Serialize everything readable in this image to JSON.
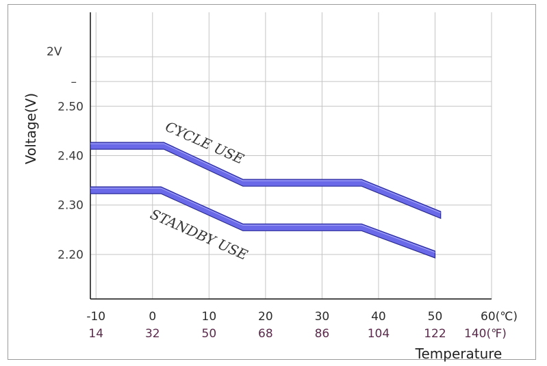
{
  "chart_data": {
    "type": "line",
    "ylabel": "Voltage(V)",
    "xlabel": "Temperature",
    "y_ticks": [
      {
        "value": 2.6,
        "label": "2V"
      },
      {
        "value": 2.55,
        "label": "–"
      },
      {
        "value": 2.5,
        "label": "2.50"
      },
      {
        "value": 2.4,
        "label": "2.40"
      },
      {
        "value": 2.3,
        "label": "2.30"
      },
      {
        "value": 2.2,
        "label": "2.20"
      }
    ],
    "ylim": [
      2.11,
      2.69
    ],
    "x_celsius_labels": [
      "-10",
      "0",
      "10",
      "20",
      "30",
      "40",
      "50",
      "60(℃)"
    ],
    "x_fahrenheit_labels": [
      "14",
      "32",
      "50",
      "68",
      "86",
      "104",
      "122",
      "140(℉)"
    ],
    "x_celsius_values": [
      -10,
      0,
      10,
      20,
      30,
      40,
      50,
      60
    ],
    "xlim": [
      -11,
      60
    ],
    "grid": true,
    "series": [
      {
        "name": "CYCLE USE",
        "points": [
          [
            -11,
            2.42
          ],
          [
            2,
            2.42
          ],
          [
            16,
            2.345
          ],
          [
            37,
            2.345
          ],
          [
            51,
            2.28
          ]
        ]
      },
      {
        "name": "STANDBY USE",
        "points": [
          [
            -11,
            2.33
          ],
          [
            1.5,
            2.33
          ],
          [
            16,
            2.255
          ],
          [
            37,
            2.255
          ],
          [
            50,
            2.2
          ]
        ]
      }
    ],
    "line_color": "#6a6ae8",
    "line_edge_color": "#2a2a9a"
  }
}
